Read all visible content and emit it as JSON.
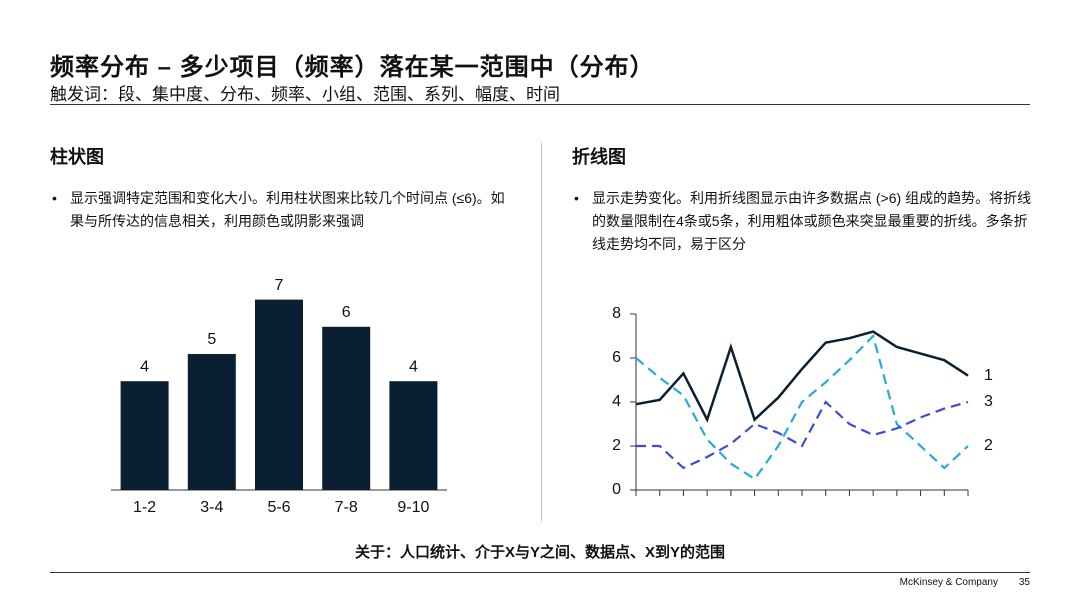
{
  "header": {
    "title": "频率分布 – 多少项目（频率）落在某一范围中（分布）",
    "subtitle": "触发词：段、集中度、分布、频率、小组、范围、系列、幅度、时间"
  },
  "sections": [
    {
      "heading": "柱状图",
      "bullet": "显示强调特定范围和变化大小。利用柱状图来比较几个时间点 (≤6)。如果与所传达的信息相关，利用颜色或阴影来强调"
    },
    {
      "heading": "折线图",
      "bullet": "显示走势变化。利用折线图显示由许多数据点 (>6) 组成的趋势。将折线的数量限制在4条或5条，利用粗体或颜色来突显最重要的折线。多条折线走势均不同，易于区分"
    }
  ],
  "chart_data": [
    {
      "type": "bar",
      "categories": [
        "1-2",
        "3-4",
        "5-6",
        "7-8",
        "9-10"
      ],
      "values": [
        4,
        5,
        7,
        6,
        4
      ],
      "color": "#0b1f33"
    },
    {
      "type": "line",
      "categories": [
        null,
        null,
        null,
        null,
        null,
        null,
        null,
        null,
        null,
        null,
        null,
        null,
        null,
        null,
        null
      ],
      "ylim": [
        0,
        8
      ],
      "yticks": [
        0,
        2,
        4,
        6,
        8
      ],
      "series": [
        {
          "name": "1",
          "color": "#0b1f33",
          "values": [
            3.9,
            4.1,
            5.3,
            3.2,
            6.5,
            3.2,
            4.2,
            5.5,
            6.7,
            6.9,
            7.2,
            6.5,
            6.2,
            5.9,
            5.2
          ]
        },
        {
          "name": "2",
          "color": "#29a8e0",
          "values": [
            6.0,
            5.1,
            4.3,
            2.3,
            1.2,
            0.5,
            2.0,
            4.0,
            4.9,
            5.9,
            7.0,
            3.0,
            2.0,
            1.0,
            2.0
          ]
        },
        {
          "name": "3",
          "color": "#3a4fd0",
          "values": [
            2.0,
            2.0,
            1.0,
            1.5,
            2.1,
            3.0,
            2.6,
            2.0,
            4.0,
            3.0,
            2.5,
            2.8,
            3.3,
            3.7,
            4.0
          ]
        }
      ]
    }
  ],
  "footer": {
    "note": "关于：人口统计、介于X与Y之间、数据点、X到Y的范围",
    "brand": "McKinsey & Company",
    "page": "35"
  }
}
